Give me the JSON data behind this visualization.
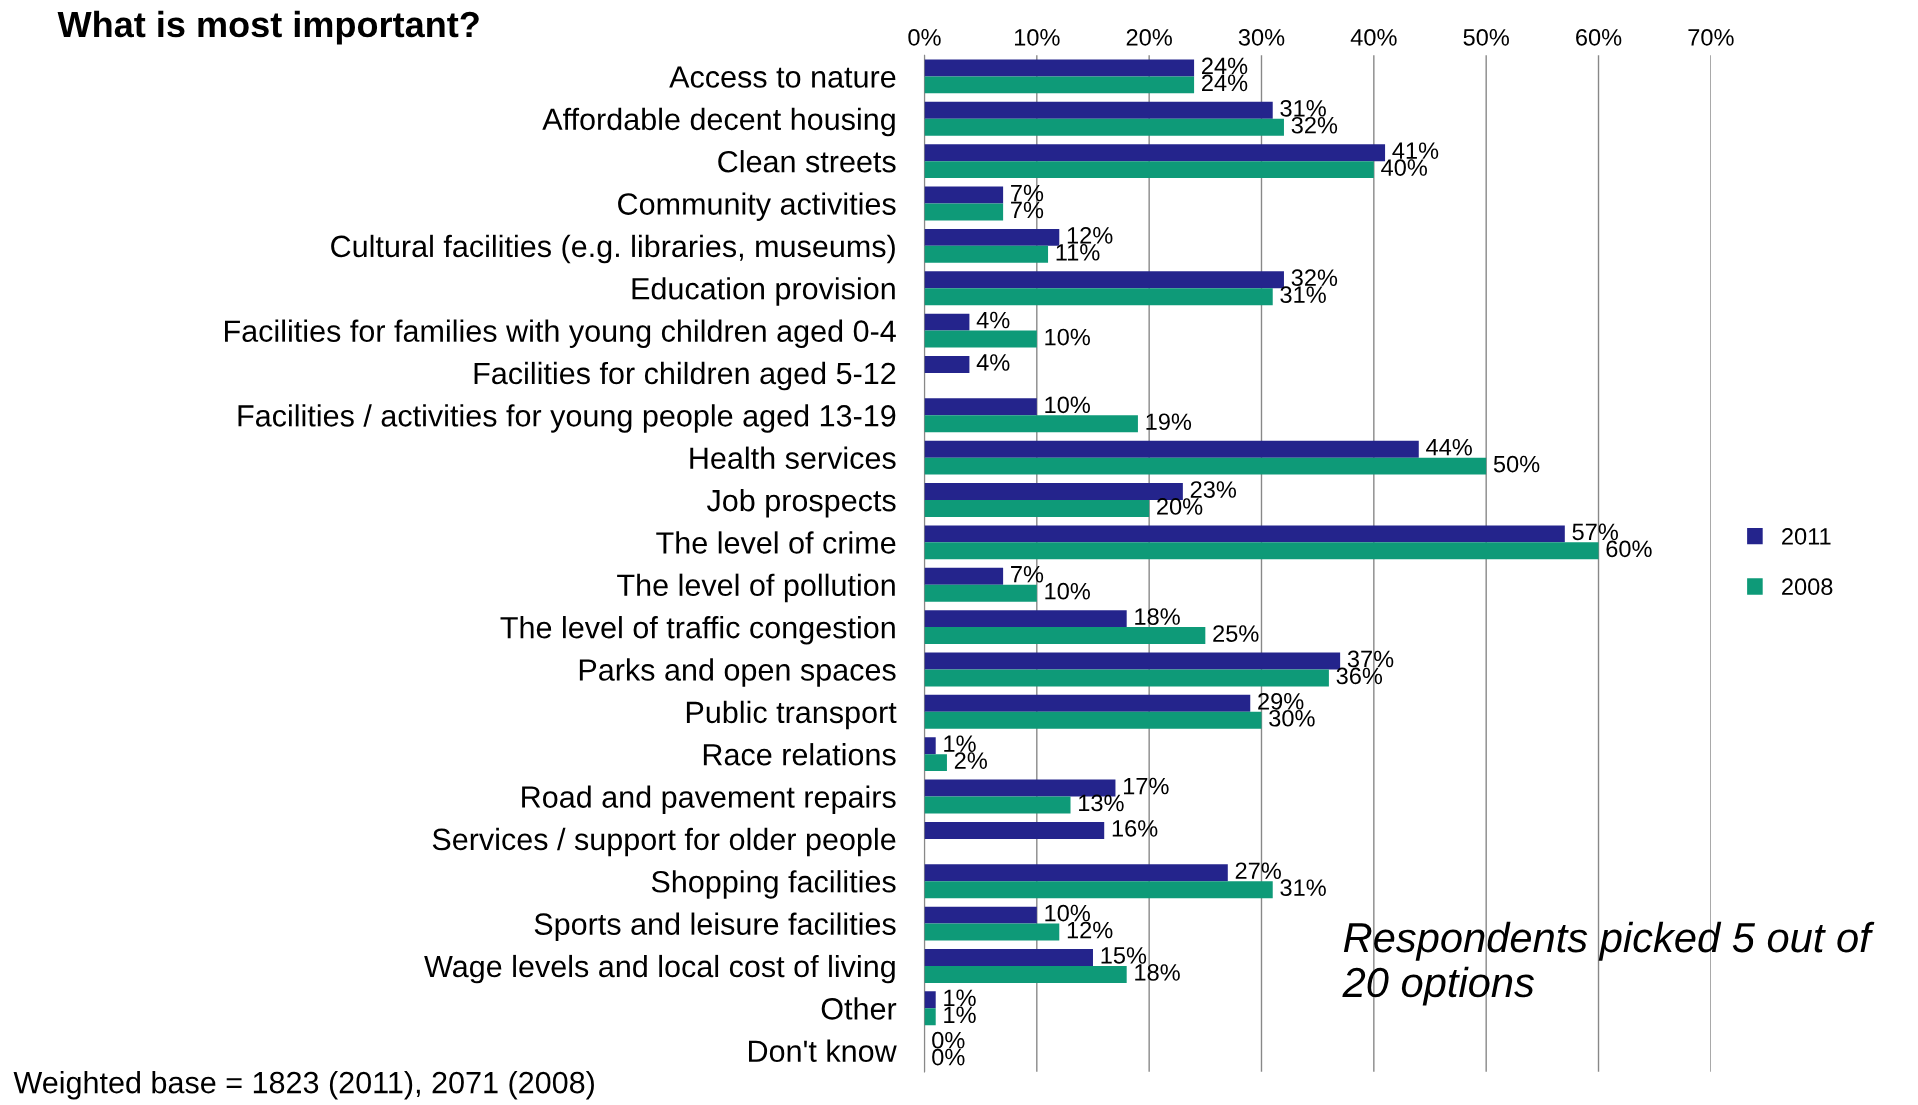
{
  "chart_data": {
    "type": "bar",
    "orientation": "horizontal",
    "title": "What is most important?",
    "categories": [
      "Access to nature",
      "Affordable decent housing",
      "Clean streets",
      "Community activities",
      "Cultural facilities (e.g. libraries, museums)",
      "Education provision",
      "Facilities for families with young children aged 0-4",
      "Facilities for children aged 5-12",
      "Facilities / activities for young people aged 13-19",
      "Health services",
      "Job prospects",
      "The level of crime",
      "The level of pollution",
      "The level of traffic congestion",
      "Parks and open spaces",
      "Public transport",
      "Race relations",
      "Road and pavement repairs",
      "Services / support for older people",
      "Shopping facilities",
      "Sports and leisure facilities",
      "Wage levels and local cost of living",
      "Other",
      "Don't know"
    ],
    "series": [
      {
        "name": "2011",
        "color": "#24248c",
        "values": [
          24,
          31,
          41,
          7,
          12,
          32,
          4,
          4,
          10,
          44,
          23,
          57,
          7,
          18,
          37,
          29,
          1,
          17,
          16,
          27,
          10,
          15,
          1,
          0
        ],
        "value_labels": [
          "24%",
          "31%",
          "41%",
          "7%",
          "12%",
          "32%",
          "4%",
          "4%",
          "10%",
          "44%",
          "23%",
          "57%",
          "7%",
          "18%",
          "37%",
          "29%",
          "1%",
          "17%",
          "16%",
          "27%",
          "10%",
          "15%",
          "1%",
          "0%"
        ]
      },
      {
        "name": "2008",
        "color": "#0e9a78",
        "values": [
          24,
          32,
          40,
          7,
          11,
          31,
          10,
          null,
          19,
          50,
          20,
          60,
          10,
          25,
          36,
          30,
          2,
          13,
          null,
          31,
          12,
          18,
          1,
          0
        ],
        "value_labels": [
          "24%",
          "32%",
          "40%",
          "7%",
          "11%",
          "31%",
          "10%",
          null,
          "19%",
          "50%",
          "20%",
          "60%",
          "10%",
          "25%",
          "36%",
          "30%",
          "2%",
          "13%",
          null,
          "31%",
          "12%",
          "18%",
          "1%",
          "0%"
        ]
      }
    ],
    "xlim": [
      0,
      70
    ],
    "xticks": [
      {
        "value": 0,
        "label": "0%"
      },
      {
        "value": 10,
        "label": "10%"
      },
      {
        "value": 20,
        "label": "20%"
      },
      {
        "value": 30,
        "label": "30%"
      },
      {
        "value": 40,
        "label": "40%"
      },
      {
        "value": 50,
        "label": "50%"
      },
      {
        "value": 60,
        "label": "60%"
      },
      {
        "value": 70,
        "label": "70%"
      }
    ],
    "grid": "x",
    "legend": "right",
    "annotations": [
      "Respondents picked 5 out of 20 options",
      "Weighted base = 1823 (2011), 2071 (2008)"
    ]
  }
}
